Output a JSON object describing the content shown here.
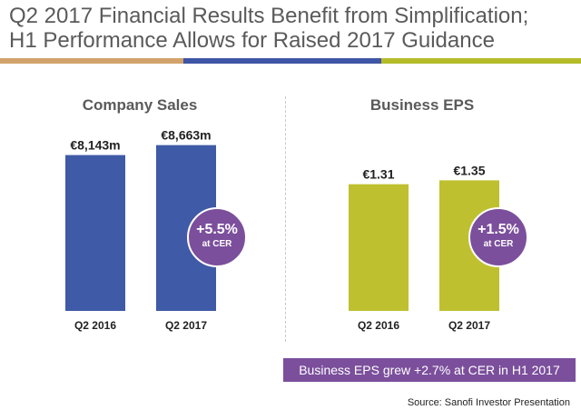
{
  "header": {
    "title_line1": "Q2 2017 Financial Results Benefit from Simplification;",
    "title_line2": "H1 Performance Allows for Raised 2017 Guidance"
  },
  "colors": {
    "band_left": "#d1a36a",
    "band_mid": "#3f56a6",
    "band_right": "#b4bc2a",
    "sales_bar": "#3f5aa6",
    "eps_bar": "#bfc02f",
    "badge": "#7b4f9c",
    "banner": "#7b4f9c"
  },
  "chart_data": [
    {
      "type": "bar",
      "title": "Company Sales",
      "categories": [
        "Q2 2016",
        "Q2 2017"
      ],
      "values": [
        8143,
        8663
      ],
      "data_labels": [
        "€8,143m",
        "€8,663m"
      ],
      "unit": "€m",
      "ylim": [
        0,
        9500
      ],
      "annotation": {
        "value": "+5.5%",
        "label": "at CER"
      }
    },
    {
      "type": "bar",
      "title": "Business EPS",
      "categories": [
        "Q2 2016",
        "Q2 2017"
      ],
      "values": [
        1.31,
        1.35
      ],
      "data_labels": [
        "€1.31",
        "€1.35"
      ],
      "unit": "€",
      "ylim": [
        0,
        1.88
      ],
      "annotation": {
        "value": "+1.5%",
        "label": "at CER"
      }
    }
  ],
  "banner_text": "Business EPS grew +2.7% at CER in H1 2017",
  "source_text": "Source: Sanofi Investor Presentation"
}
